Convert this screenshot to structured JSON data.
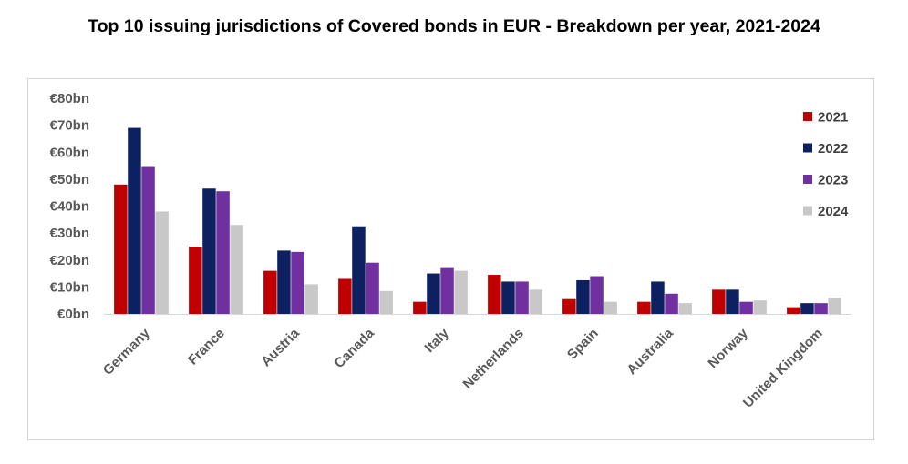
{
  "chart_data": {
    "type": "bar",
    "title": "Top 10 issuing jurisdictions of Covered bonds in EUR - Breakdown per year, 2021-2024",
    "xlabel": "",
    "ylabel": "",
    "ylim": [
      0,
      80
    ],
    "y_ticks": [
      "€0bn",
      "€10bn",
      "€20bn",
      "€30bn",
      "€40bn",
      "€50bn",
      "€60bn",
      "€70bn",
      "€80bn"
    ],
    "y_tick_values": [
      0,
      10,
      20,
      30,
      40,
      50,
      60,
      70,
      80
    ],
    "grid": false,
    "legend_position": "right",
    "categories": [
      "Germany",
      "France",
      "Austria",
      "Canada",
      "Italy",
      "Netherlands",
      "Spain",
      "Australia",
      "Norway",
      "United Kingdom"
    ],
    "series": [
      {
        "name": "2021",
        "color": "#c00000",
        "values": [
          48,
          25,
          16,
          13,
          4.5,
          14.5,
          5.5,
          4.5,
          9,
          2.5
        ]
      },
      {
        "name": "2022",
        "color": "#0d2160",
        "values": [
          69,
          46.5,
          23.5,
          32.5,
          15,
          12,
          12.5,
          12,
          9,
          4
        ]
      },
      {
        "name": "2023",
        "color": "#7030a0",
        "values": [
          54.5,
          45.5,
          23,
          19,
          17,
          12,
          14,
          7.5,
          4.5,
          4
        ]
      },
      {
        "name": "2024",
        "color": "#c8c8c8",
        "values": [
          38,
          33,
          11,
          8.5,
          16,
          9,
          4.5,
          4,
          5,
          6
        ]
      }
    ]
  }
}
